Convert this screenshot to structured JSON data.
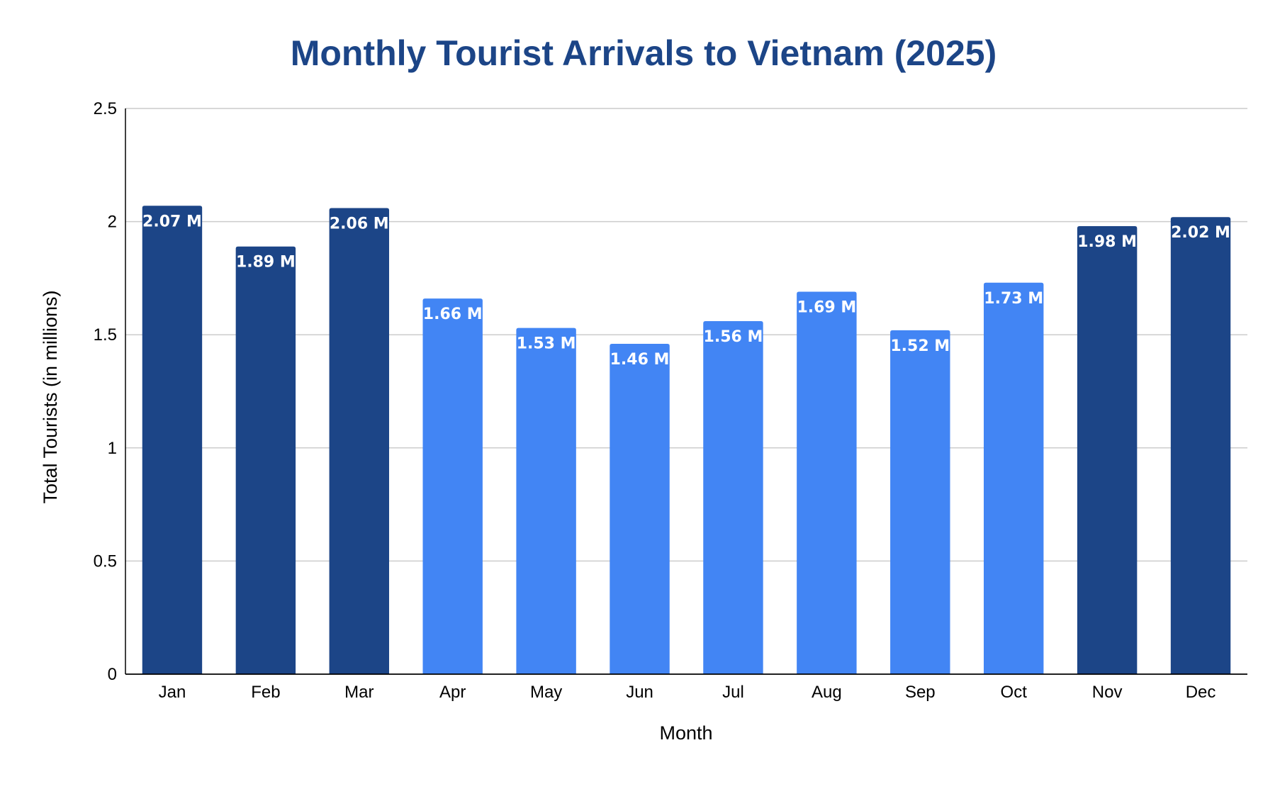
{
  "chart_data": {
    "type": "bar",
    "title": "Monthly Tourist Arrivals to Vietnam (2025)",
    "xlabel": "Month",
    "ylabel": "Total Tourists (in millions)",
    "categories": [
      "Jan",
      "Feb",
      "Mar",
      "Apr",
      "May",
      "Jun",
      "Jul",
      "Aug",
      "Sep",
      "Oct",
      "Nov",
      "Dec"
    ],
    "values": [
      2.07,
      1.89,
      2.06,
      1.66,
      1.53,
      1.46,
      1.56,
      1.69,
      1.52,
      1.73,
      1.98,
      2.02
    ],
    "data_labels": [
      "2.07 M",
      "1.89 M",
      "2.06 M",
      "1.66 M",
      "1.53 M",
      "1.46 M",
      "1.56 M",
      "1.69 M",
      "1.52 M",
      "1.73 M",
      "1.98 M",
      "2.02 M"
    ],
    "bar_colors": [
      "#1c4587",
      "#1c4587",
      "#1c4587",
      "#4285f4",
      "#4285f4",
      "#4285f4",
      "#4285f4",
      "#4285f4",
      "#4285f4",
      "#4285f4",
      "#1c4587",
      "#1c4587"
    ],
    "ylim": [
      0,
      2.5
    ],
    "yticks": [
      0,
      0.5,
      1,
      1.5,
      2,
      2.5
    ],
    "ytick_labels": [
      "0",
      "0.5",
      "1",
      "1.5",
      "2",
      "2.5"
    ],
    "grid": true,
    "legend": "none"
  },
  "colors": {
    "title": "#1c4587",
    "peak_bar": "#1c4587",
    "regular_bar": "#4285f4",
    "gridline": "#cccccc",
    "axis": "#000000",
    "data_label": "#ffffff"
  }
}
